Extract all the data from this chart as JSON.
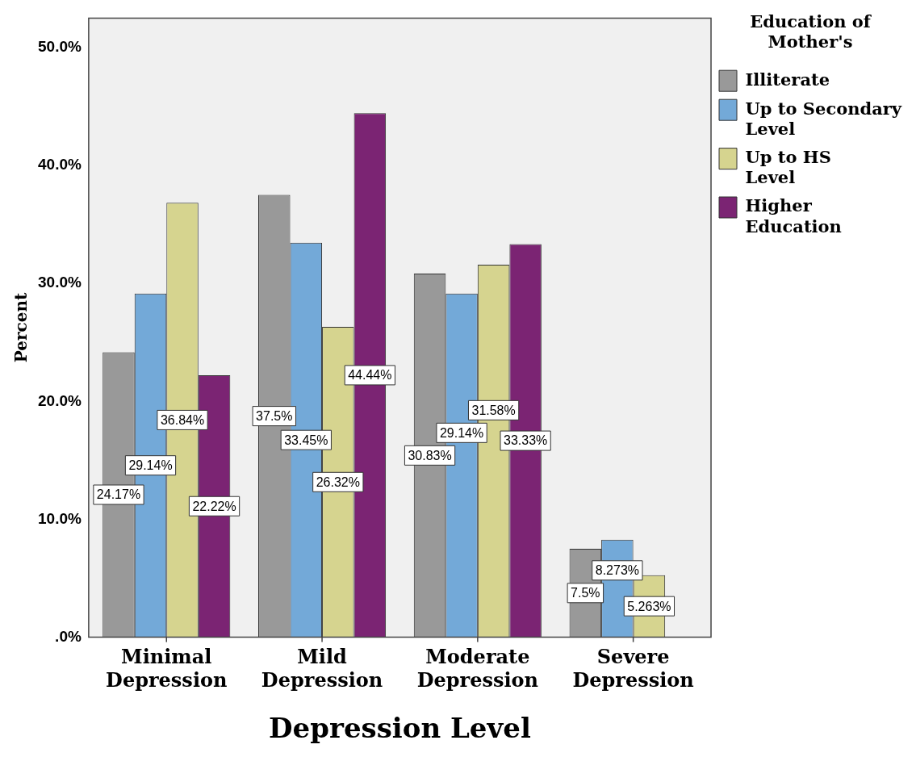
{
  "chart_data": {
    "type": "bar",
    "xlabel": "Depression Level",
    "ylabel": "Percent",
    "legend_title": "Education of Mother's",
    "categories": [
      "Minimal Depression",
      "Mild Depression",
      "Moderate Depression",
      "Severe Depression"
    ],
    "series": [
      {
        "name": "Illiterate",
        "color": "#999999",
        "values": [
          24.17,
          37.5,
          30.83,
          7.5
        ],
        "value_labels": [
          "24.17%",
          "37.5%",
          "30.83%",
          "7.5%"
        ]
      },
      {
        "name": "Up to Secondary Level",
        "color": "#73a9d8",
        "values": [
          29.14,
          33.45,
          29.14,
          8.273
        ],
        "value_labels": [
          "29.14%",
          "33.45%",
          "29.14%",
          "8.273%"
        ]
      },
      {
        "name": "Up to HS Level",
        "color": "#d6d48f",
        "values": [
          36.84,
          26.32,
          31.58,
          5.263
        ],
        "value_labels": [
          "36.84%",
          "26.32%",
          "31.58%",
          "5.263%"
        ]
      },
      {
        "name": "Higher Education",
        "color": "#7b2473",
        "values": [
          22.22,
          44.44,
          33.33,
          null
        ],
        "value_labels": [
          "22.22%",
          "44.44%",
          "33.33%",
          null
        ]
      }
    ],
    "ylim": [
      0,
      52.5
    ],
    "yticks": [
      {
        "value": 0,
        "label": ".0%"
      },
      {
        "value": 10,
        "label": "10.0%"
      },
      {
        "value": 20,
        "label": "20.0%"
      },
      {
        "value": 30,
        "label": "30.0%"
      },
      {
        "value": 40,
        "label": "40.0%"
      },
      {
        "value": 50,
        "label": "50.0%"
      }
    ],
    "grid": false,
    "legend": "top right"
  }
}
